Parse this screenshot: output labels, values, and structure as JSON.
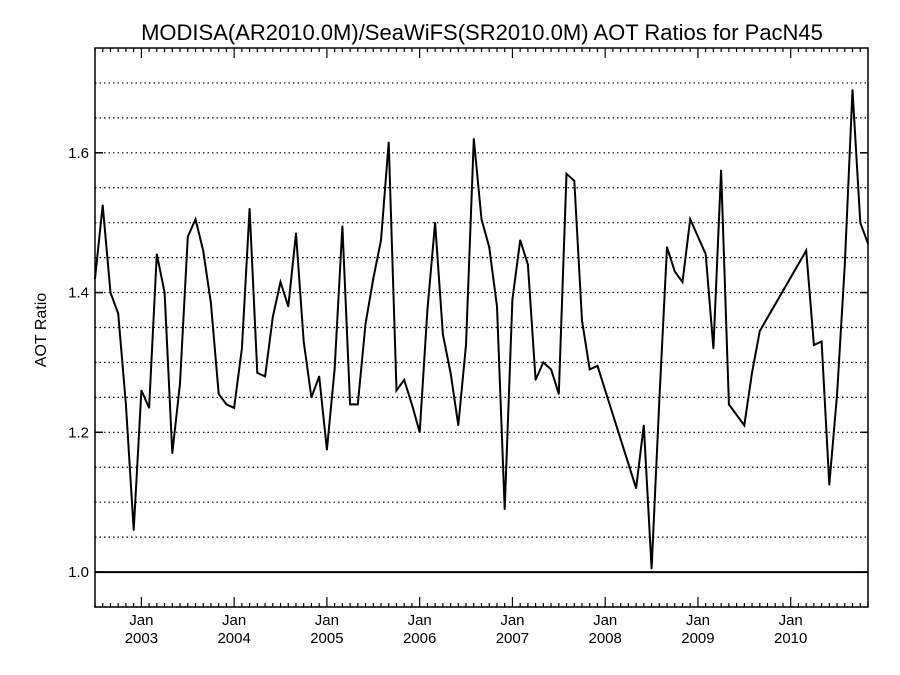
{
  "chart_data": {
    "type": "line",
    "title": "MODISA(AR2010.0M)/SeaWiFS(SR2010.0M)  AOT Ratios for PacN45",
    "xlabel": "",
    "ylabel": "AOT Ratio",
    "xlim": [
      "2002-07",
      "2010-11"
    ],
    "ylim": [
      0.95,
      1.75
    ],
    "y_ticks": [
      {
        "value": 1.0,
        "label": "1.0"
      },
      {
        "value": 1.2,
        "label": "1.2"
      },
      {
        "value": 1.4,
        "label": "1.4"
      },
      {
        "value": 1.6,
        "label": "1.6"
      }
    ],
    "x_ticks": [
      {
        "date": "2003-01",
        "month": "Jan",
        "year": "2003"
      },
      {
        "date": "2004-01",
        "month": "Jan",
        "year": "2004"
      },
      {
        "date": "2005-01",
        "month": "Jan",
        "year": "2005"
      },
      {
        "date": "2006-01",
        "month": "Jan",
        "year": "2006"
      },
      {
        "date": "2007-01",
        "month": "Jan",
        "year": "2007"
      },
      {
        "date": "2008-01",
        "month": "Jan",
        "year": "2008"
      },
      {
        "date": "2009-01",
        "month": "Jan",
        "year": "2009"
      },
      {
        "date": "2010-01",
        "month": "Jan",
        "year": "2010"
      }
    ],
    "grid": "horizontal-dotted",
    "reference_line": 1.0,
    "series": [
      {
        "color": "#000000",
        "points": [
          [
            "2002-07",
            1.42
          ],
          [
            "2002-08",
            1.525
          ],
          [
            "2002-09",
            1.4
          ],
          [
            "2002-10",
            1.37
          ],
          [
            "2002-11",
            1.24
          ],
          [
            "2002-12",
            1.06
          ],
          [
            "2003-01",
            1.26
          ],
          [
            "2003-02",
            1.235
          ],
          [
            "2003-03",
            1.455
          ],
          [
            "2003-04",
            1.4
          ],
          [
            "2003-05",
            1.17
          ],
          [
            "2003-06",
            1.27
          ],
          [
            "2003-07",
            1.48
          ],
          [
            "2003-08",
            1.505
          ],
          [
            "2003-09",
            1.46
          ],
          [
            "2003-10",
            1.385
          ],
          [
            "2003-11",
            1.255
          ],
          [
            "2003-12",
            1.24
          ],
          [
            "2004-01",
            1.235
          ],
          [
            "2004-02",
            1.32
          ],
          [
            "2004-03",
            1.52
          ],
          [
            "2004-04",
            1.285
          ],
          [
            "2004-05",
            1.28
          ],
          [
            "2004-06",
            1.365
          ],
          [
            "2004-07",
            1.415
          ],
          [
            "2004-08",
            1.38
          ],
          [
            "2004-09",
            1.485
          ],
          [
            "2004-10",
            1.33
          ],
          [
            "2004-11",
            1.25
          ],
          [
            "2004-12",
            1.28
          ],
          [
            "2005-01",
            1.175
          ],
          [
            "2005-02",
            1.29
          ],
          [
            "2005-03",
            1.495
          ],
          [
            "2005-04",
            1.24
          ],
          [
            "2005-05",
            1.24
          ],
          [
            "2005-06",
            1.355
          ],
          [
            "2005-07",
            1.42
          ],
          [
            "2005-08",
            1.475
          ],
          [
            "2005-09",
            1.615
          ],
          [
            "2005-10",
            1.26
          ],
          [
            "2005-11",
            1.275
          ],
          [
            "2005-12",
            1.24
          ],
          [
            "2006-01",
            1.2
          ],
          [
            "2006-02",
            1.375
          ],
          [
            "2006-03",
            1.5
          ],
          [
            "2006-04",
            1.34
          ],
          [
            "2006-05",
            1.285
          ],
          [
            "2006-06",
            1.21
          ],
          [
            "2006-07",
            1.325
          ],
          [
            "2006-08",
            1.62
          ],
          [
            "2006-09",
            1.505
          ],
          [
            "2006-10",
            1.465
          ],
          [
            "2006-11",
            1.38
          ],
          [
            "2006-12",
            1.09
          ],
          [
            "2007-01",
            1.39
          ],
          [
            "2007-02",
            1.475
          ],
          [
            "2007-03",
            1.44
          ],
          [
            "2007-04",
            1.275
          ],
          [
            "2007-05",
            1.3
          ],
          [
            "2007-06",
            1.29
          ],
          [
            "2007-07",
            1.255
          ],
          [
            "2007-08",
            1.57
          ],
          [
            "2007-09",
            1.56
          ],
          [
            "2007-10",
            1.36
          ],
          [
            "2007-11",
            1.29
          ],
          [
            "2007-12",
            1.295
          ],
          [
            "2008-05",
            1.12
          ],
          [
            "2008-06",
            1.21
          ],
          [
            "2008-07",
            1.005
          ],
          [
            "2008-08",
            1.245
          ],
          [
            "2008-09",
            1.465
          ],
          [
            "2008-10",
            1.43
          ],
          [
            "2008-11",
            1.415
          ],
          [
            "2008-12",
            1.505
          ],
          [
            "2009-02",
            1.455
          ],
          [
            "2009-03",
            1.32
          ],
          [
            "2009-04",
            1.575
          ],
          [
            "2009-05",
            1.24
          ],
          [
            "2009-07",
            1.21
          ],
          [
            "2009-08",
            1.285
          ],
          [
            "2009-09",
            1.345
          ],
          [
            "2010-03",
            1.46
          ],
          [
            "2010-04",
            1.325
          ],
          [
            "2010-05",
            1.33
          ],
          [
            "2010-06",
            1.125
          ],
          [
            "2010-07",
            1.255
          ],
          [
            "2010-08",
            1.44
          ],
          [
            "2010-09",
            1.69
          ],
          [
            "2010-10",
            1.5
          ],
          [
            "2010-11",
            1.47
          ]
        ]
      }
    ]
  }
}
